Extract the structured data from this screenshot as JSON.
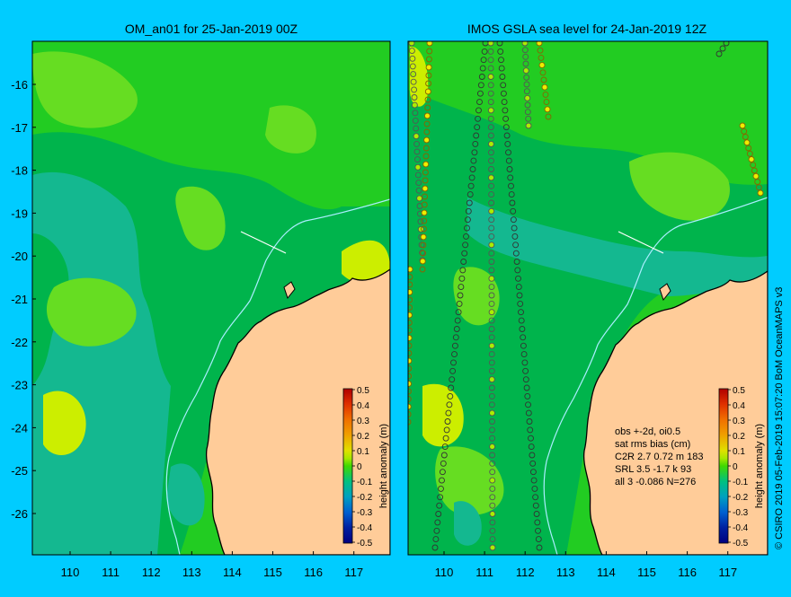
{
  "figure": {
    "background": "#00ccff",
    "credit": "© CSIRO 2019  05-Feb-2019 15:07:20 BoM OceanMAPS v3"
  },
  "axes": {
    "lat_ticks": [
      "-16",
      "-17",
      "-18",
      "-19",
      "-20",
      "-21",
      "-22",
      "-23",
      "-24",
      "-25",
      "-26"
    ],
    "lon_ticks": [
      "110",
      "111",
      "112",
      "113",
      "114",
      "115",
      "116",
      "117"
    ]
  },
  "colorbar": {
    "label": "height anomaly (m)",
    "ticks": [
      "0.5",
      "0.4",
      "0.3",
      "0.2",
      "0.1",
      "0",
      "-0.1",
      "-0.2",
      "-0.3",
      "-0.4",
      "-0.5"
    ],
    "colors": [
      "#b00000",
      "#e03000",
      "#f07000",
      "#f0a000",
      "#e0e000",
      "#a8e800",
      "#40d800",
      "#00c080",
      "#00a0c0",
      "#0060d0",
      "#0020a0",
      "#000080"
    ]
  },
  "panels": [
    {
      "title": "OM_an01 for 25-Jan-2019 00Z"
    },
    {
      "title": "IMOS GSLA sea level  for 24-Jan-2019 12Z"
    }
  ],
  "stats": {
    "lines": [
      "obs +-2d, oi0.5",
      "sat rms bias (cm)",
      "C2R   2.7 0.72 m 183",
      "SRL   3.5 -1.7 k 93",
      "all    3 -0.086 N=276"
    ]
  },
  "palette": {
    "field_base": "#22cc22",
    "field_dark": "#00b44c",
    "field_teal": "#14b890",
    "field_light": "#66dd22",
    "field_yellow": "#ccee00",
    "land": "#ffcc99",
    "coast": "#000000",
    "isobath": "#aaeeff"
  }
}
